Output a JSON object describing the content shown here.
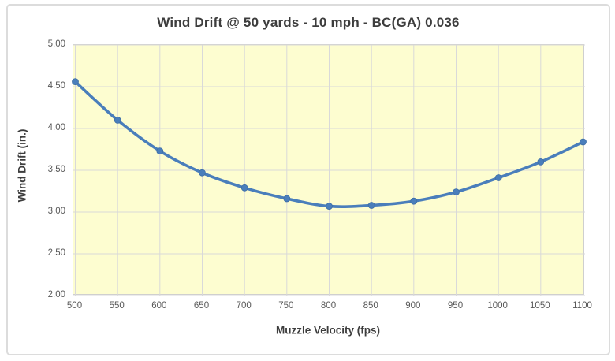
{
  "chart_data": {
    "type": "line",
    "title": "Wind Drift @ 50 yards - 10 mph - BC(GA) 0.036",
    "xlabel": "Muzzle Velocity (fps)",
    "ylabel": "Wind Drift (in.)",
    "x": [
      500,
      550,
      600,
      650,
      700,
      750,
      800,
      850,
      900,
      950,
      1000,
      1050,
      1100
    ],
    "values": [
      4.56,
      4.1,
      3.73,
      3.47,
      3.29,
      3.16,
      3.07,
      3.08,
      3.13,
      3.24,
      3.41,
      3.6,
      3.84
    ],
    "ylim": [
      2.0,
      5.0
    ],
    "ytick_labels": [
      "5.00",
      "4.50",
      "4.00",
      "3.50",
      "3.00",
      "2.50",
      "2.00"
    ],
    "grid": "both",
    "legend": "none",
    "smooth": true,
    "marker": "circle",
    "colors": {
      "line": "#4a7ebb",
      "marker_fill": "#4a7ebb",
      "marker_edge": "#3e6ea5",
      "plot_bg": "#fdfdd0",
      "gridline": "#d9d9d9",
      "plot_border": "#cfcfcf",
      "frame_border": "#dcdcdc",
      "title_text": "#3d3d3d",
      "tick_text": "#595959"
    }
  }
}
